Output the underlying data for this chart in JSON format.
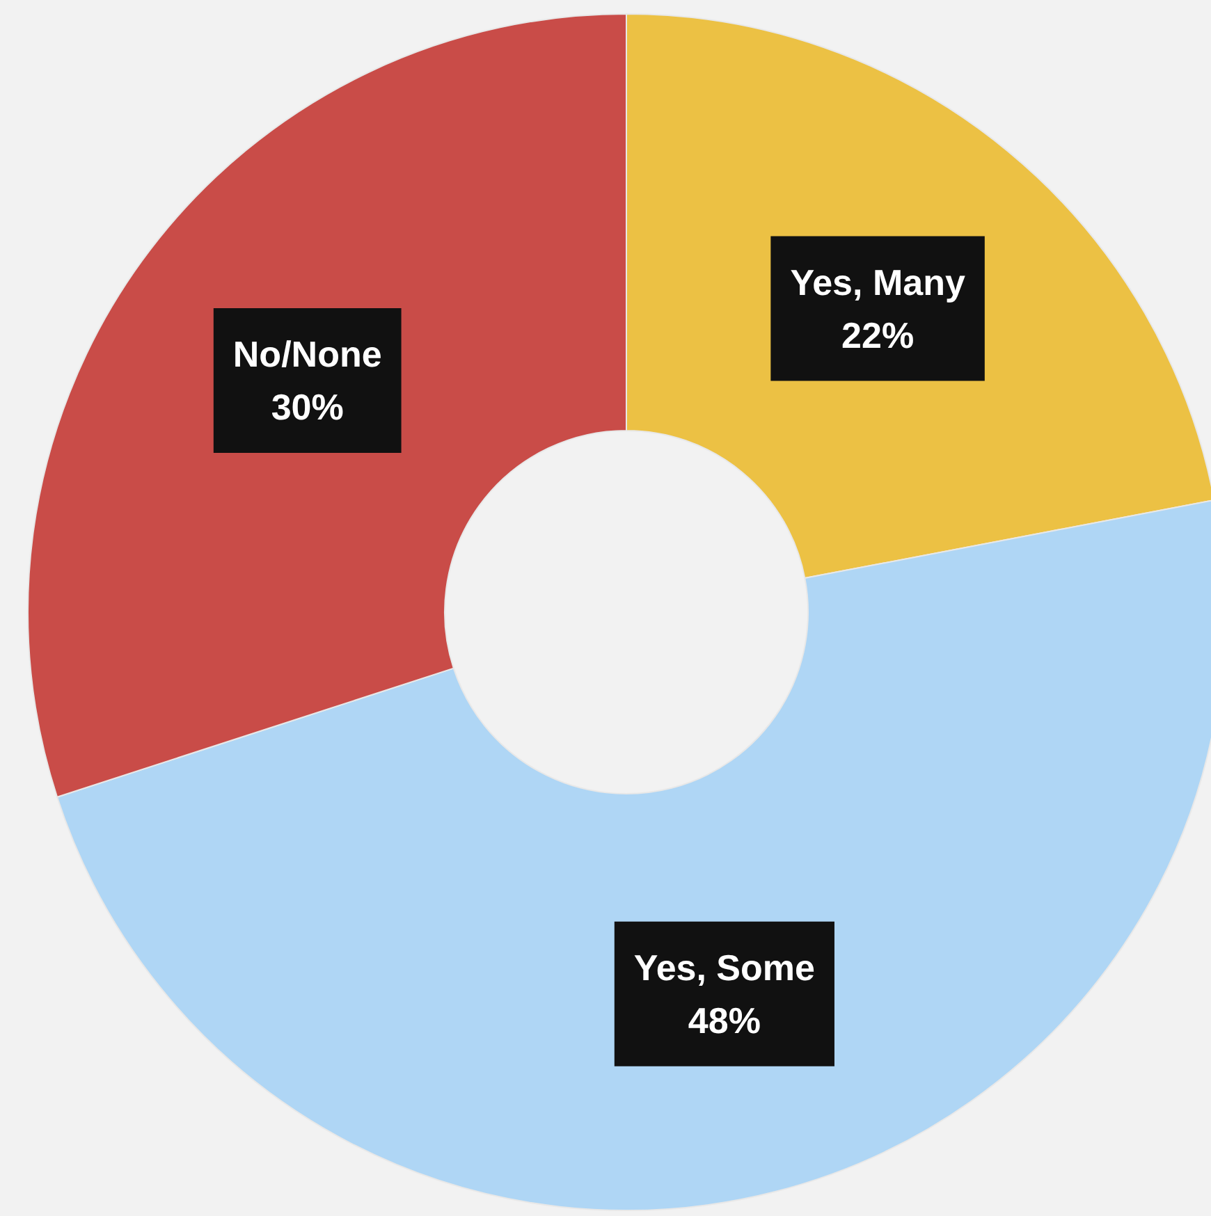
{
  "chart_data": {
    "type": "donut",
    "categories": [
      "Yes, Many",
      "Yes, Some",
      "No/None"
    ],
    "values": [
      22,
      48,
      30
    ],
    "value_labels": [
      "22%",
      "48%",
      "30%"
    ],
    "colors": [
      "#ecc144",
      "#afd6f5",
      "#c94c48"
    ],
    "legend": false
  }
}
